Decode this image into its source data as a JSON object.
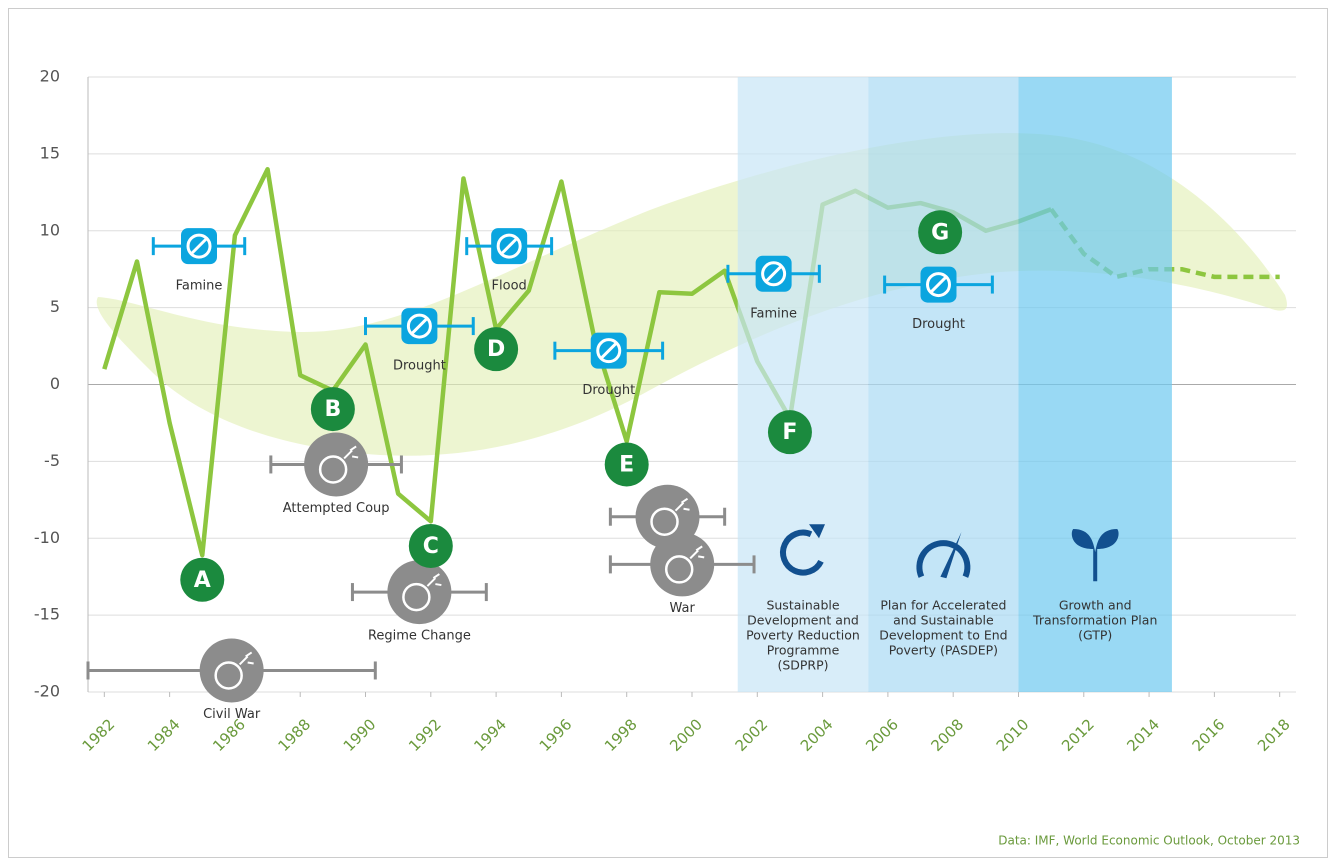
{
  "chart_data": {
    "type": "line",
    "x": [
      1982,
      1983,
      1984,
      1985,
      1986,
      1987,
      1988,
      1989,
      1990,
      1991,
      1992,
      1993,
      1994,
      1995,
      1996,
      1997,
      1998,
      1999,
      2000,
      2001,
      2002,
      2003,
      2004,
      2005,
      2006,
      2007,
      2008,
      2009,
      2010,
      2011,
      2012,
      2013,
      2014,
      2015,
      2016,
      2017,
      2018
    ],
    "series": [
      {
        "color": "#8dc63f",
        "values": [
          1,
          8,
          -2.5,
          -11.1,
          9.7,
          14,
          0.6,
          -0.4,
          2.6,
          -7.1,
          -8.9,
          13.4,
          3.6,
          6.1,
          13.2,
          3.1,
          -3.7,
          6,
          5.9,
          7.4,
          1.5,
          -2.2,
          11.7,
          12.6,
          11.5,
          11.8,
          11.2,
          10,
          10.6,
          11.4,
          null,
          null,
          null,
          null,
          null,
          null,
          null
        ]
      },
      {
        "color": "#8dc63f",
        "dashed": true,
        "values": [
          null,
          null,
          null,
          null,
          null,
          null,
          null,
          null,
          null,
          null,
          null,
          null,
          null,
          null,
          null,
          null,
          null,
          null,
          null,
          null,
          null,
          null,
          null,
          null,
          null,
          null,
          null,
          null,
          null,
          11.4,
          8.5,
          7,
          7.5,
          7.5,
          7,
          7,
          7
        ]
      }
    ],
    "xlim": [
      1981.5,
      2018.5
    ],
    "xticks": [
      1982,
      1984,
      1986,
      1988,
      1990,
      1992,
      1994,
      1996,
      1998,
      2000,
      2002,
      2004,
      2006,
      2008,
      2010,
      2012,
      2014,
      2016,
      2018
    ],
    "ylim": [
      -20,
      20
    ],
    "yticks": [
      -20,
      -15,
      -10,
      -5,
      0,
      5,
      10,
      15,
      20
    ],
    "grid": true,
    "letters": [
      {
        "label": "A",
        "x": 1985,
        "y": -12.7
      },
      {
        "label": "B",
        "x": 1989,
        "y": -1.6
      },
      {
        "label": "C",
        "x": 1992,
        "y": -10.5
      },
      {
        "label": "D",
        "x": 1994,
        "y": 2.3
      },
      {
        "label": "E",
        "x": 1998,
        "y": -5.2
      },
      {
        "label": "F",
        "x": 2003,
        "y": -3.1
      },
      {
        "label": "G",
        "x": 2007.6,
        "y": 9.9
      }
    ],
    "events": [
      {
        "kind": "famine",
        "label": "Famine",
        "start": 1983.5,
        "end": 1986.3,
        "y": 9
      },
      {
        "kind": "flood",
        "label": "Flood",
        "start": 1993.1,
        "end": 1995.7,
        "y": 9
      },
      {
        "kind": "drought",
        "label": "Drought",
        "start": 1990,
        "end": 1993.3,
        "y": 3.8
      },
      {
        "kind": "drought",
        "label": "Drought",
        "start": 1995.8,
        "end": 1999.1,
        "y": 2.2
      },
      {
        "kind": "famine",
        "label": "Famine",
        "start": 2001.1,
        "end": 2003.9,
        "y": 7.2
      },
      {
        "kind": "drought",
        "label": "Drought",
        "start": 2005.9,
        "end": 2009.2,
        "y": 6.5
      },
      {
        "kind": "coup",
        "label": "Attempted Coup",
        "start": 1987.1,
        "end": 1991.1,
        "y": -5.2
      },
      {
        "kind": "regime",
        "label": "Regime Change",
        "start": 1989.6,
        "end": 1993.7,
        "y": -13.5
      },
      {
        "kind": "war",
        "label": "Civil War",
        "start": 1981.5,
        "end": 1990.3,
        "y": -18.6
      },
      {
        "kind": "war",
        "start": 1997.5,
        "end": 2001,
        "y": -8.6
      },
      {
        "kind": "war",
        "label": "War",
        "start": 1997.5,
        "end": 2001.9,
        "y": -11.7
      }
    ],
    "periods": [
      {
        "start": 2001.4,
        "end": 2005.4,
        "color": "#c8e6f7",
        "icon": "cycle",
        "label_lines": [
          "Sustainable",
          "Development and",
          "Poverty Reduction",
          "Programme",
          "(SDPRP)"
        ]
      },
      {
        "start": 2005.4,
        "end": 2010,
        "color": "#a9daf4",
        "icon": "gauge",
        "label_lines": [
          "Plan for Accelerated",
          "and Sustainable",
          "Development to End",
          "Poverty (PASDEP)"
        ]
      },
      {
        "start": 2010,
        "end": 2014.7,
        "color": "#6ec9ef",
        "icon": "sprout",
        "label_lines": [
          "Growth and",
          "Transformation Plan",
          "(GTP)"
        ]
      }
    ],
    "source": "Data: IMF, World Economic Outlook, October 2013"
  }
}
